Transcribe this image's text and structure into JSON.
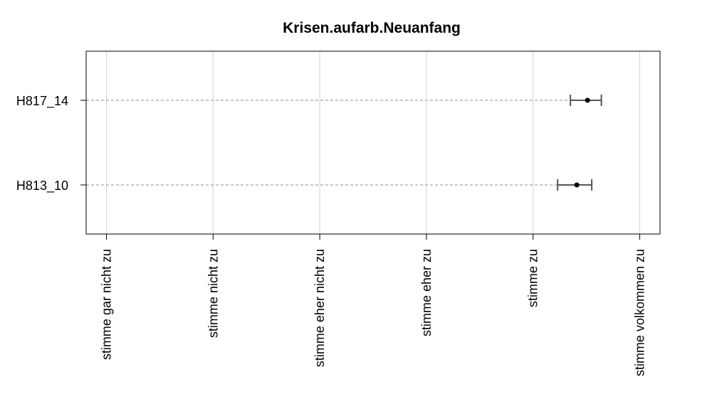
{
  "chart_data": {
    "type": "dot-errorbar",
    "title": "Krisen.aufarb.Neuanfang",
    "xlabel": "",
    "ylabel": "",
    "x_ticks": [
      "stimme gar nicht zu",
      "stimme nicht zu",
      "stimme eher nicht zu",
      "stimme eher zu",
      "stimme zu",
      "stimme volkommen zu"
    ],
    "x_tick_values": [
      1,
      2,
      3,
      4,
      5,
      6
    ],
    "xlim": [
      0.81,
      6.19
    ],
    "grid": true,
    "categories": [
      "H817_14",
      "H813_10"
    ],
    "series": [
      {
        "points": [
          {
            "category": "H817_14",
            "mean": 5.51,
            "lower": 5.35,
            "upper": 5.64
          },
          {
            "category": "H813_10",
            "mean": 5.41,
            "lower": 5.23,
            "upper": 5.55
          }
        ]
      }
    ],
    "colors": {
      "point": "#000000",
      "errorbar": "#555555",
      "guide": "#8c8c8c",
      "grid": "#d3d3d3",
      "frame": "#000000"
    }
  }
}
